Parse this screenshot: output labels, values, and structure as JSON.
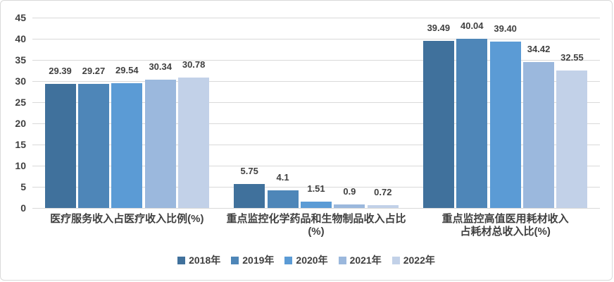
{
  "chart_data": {
    "type": "bar",
    "title": "",
    "xlabel": "",
    "ylabel": "",
    "categories": [
      {
        "label_lines": [
          "医疗服务收入占医疗收入比例(%)"
        ]
      },
      {
        "label_lines": [
          "重点监控化学药品和生物制品收入占比",
          "(%)"
        ]
      },
      {
        "label_lines": [
          "重点监控高值医用耗材收入",
          "占耗材总收入比(%)"
        ]
      }
    ],
    "series": [
      {
        "name": "2018年",
        "color": "#40719C",
        "values": [
          29.39,
          5.75,
          39.49
        ],
        "labels": [
          "29.39",
          "5.75",
          "39.49"
        ]
      },
      {
        "name": "2019年",
        "color": "#4E86B8",
        "values": [
          29.27,
          4.1,
          40.04
        ],
        "labels": [
          "29.27",
          "4.1",
          "40.04"
        ]
      },
      {
        "name": "2020年",
        "color": "#5B9BD5",
        "values": [
          29.54,
          1.51,
          39.4
        ],
        "labels": [
          "29.54",
          "1.51",
          "39.40"
        ]
      },
      {
        "name": "2021年",
        "color": "#9BB8DD",
        "values": [
          30.34,
          0.9,
          34.42
        ],
        "labels": [
          "30.34",
          "0.9",
          "34.42"
        ]
      },
      {
        "name": "2022年",
        "color": "#C2D1E8",
        "values": [
          30.78,
          0.72,
          32.55
        ],
        "labels": [
          "30.78",
          "0.72",
          "32.55"
        ]
      }
    ],
    "y_axis": {
      "min": 0,
      "max": 45,
      "step": 5,
      "tick_labels": [
        "0",
        "5",
        "10",
        "15",
        "20",
        "25",
        "30",
        "35",
        "40",
        "45"
      ]
    },
    "grid": true,
    "legend_position": "bottom",
    "colors": {
      "text": "#404040",
      "gridline": "#D9D9D9",
      "border": "#D9D9D9",
      "background": "#FFFFFF"
    }
  }
}
